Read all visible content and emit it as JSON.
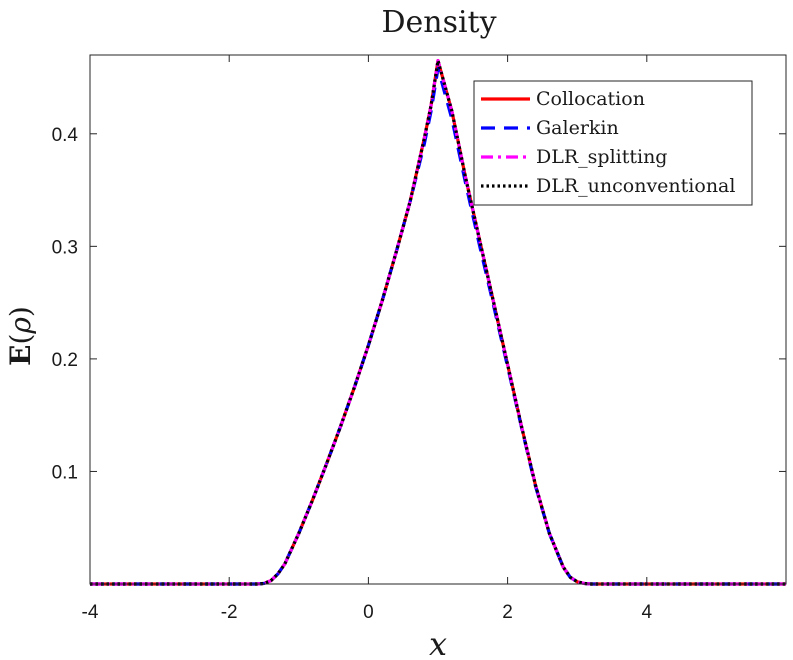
{
  "chart_data": {
    "type": "line",
    "title": "Density",
    "xlabel": "x",
    "ylabel": {
      "prefix": "E",
      "open": "(",
      "symbol": "ρ",
      "close": ")"
    },
    "xlim": [
      -4,
      6
    ],
    "ylim": [
      0,
      0.47
    ],
    "xticks": [
      -4,
      -2,
      0,
      2,
      4
    ],
    "xtick_labels": [
      "-4",
      "-2",
      "0",
      "2",
      "4"
    ],
    "yticks": [
      0.1,
      0.2,
      0.3,
      0.4
    ],
    "ytick_labels": [
      "0.1",
      "0.2",
      "0.3",
      "0.4"
    ],
    "grid": false,
    "legend_position": "top-right",
    "series": [
      {
        "name": "Collocation",
        "color": "#ff0000",
        "style": "solid",
        "x": [
          -4,
          -1.6,
          -1.5,
          -1.4,
          -1.3,
          -1.2,
          -1.0,
          -0.8,
          -0.6,
          -0.4,
          -0.2,
          0.0,
          0.2,
          0.4,
          0.6,
          0.8,
          0.9,
          1.0,
          1.2,
          1.4,
          1.6,
          1.8,
          2.0,
          2.2,
          2.4,
          2.6,
          2.8,
          2.9,
          3.0,
          3.1,
          3.2,
          6
        ],
        "y": [
          0,
          0,
          0.0005,
          0.003,
          0.009,
          0.018,
          0.045,
          0.075,
          0.107,
          0.14,
          0.175,
          0.212,
          0.252,
          0.295,
          0.34,
          0.395,
          0.425,
          0.465,
          0.42,
          0.36,
          0.305,
          0.25,
          0.195,
          0.14,
          0.088,
          0.045,
          0.015,
          0.006,
          0.002,
          0.0005,
          0,
          0
        ]
      },
      {
        "name": "Galerkin",
        "color": "#0000ff",
        "style": "dashed",
        "x": [
          -4,
          -1.6,
          -1.5,
          -1.4,
          -1.3,
          -1.2,
          -1.0,
          -0.8,
          -0.6,
          -0.4,
          -0.2,
          0.0,
          0.2,
          0.4,
          0.6,
          0.8,
          0.9,
          1.0,
          1.2,
          1.4,
          1.6,
          1.8,
          2.0,
          2.2,
          2.4,
          2.6,
          2.8,
          2.9,
          3.0,
          3.1,
          3.2,
          6
        ],
        "y": [
          0,
          0,
          0.0005,
          0.003,
          0.009,
          0.018,
          0.045,
          0.075,
          0.107,
          0.14,
          0.175,
          0.212,
          0.252,
          0.295,
          0.34,
          0.39,
          0.42,
          0.458,
          0.413,
          0.355,
          0.3,
          0.247,
          0.193,
          0.139,
          0.087,
          0.045,
          0.015,
          0.006,
          0.002,
          0.0005,
          0,
          0
        ]
      },
      {
        "name": "DLR_splitting",
        "color": "#ff00ff",
        "style": "dashdot",
        "x": [
          -4,
          -1.6,
          -1.5,
          -1.4,
          -1.3,
          -1.2,
          -1.0,
          -0.8,
          -0.6,
          -0.4,
          -0.2,
          0.0,
          0.2,
          0.4,
          0.6,
          0.8,
          0.9,
          1.0,
          1.2,
          1.4,
          1.6,
          1.8,
          2.0,
          2.2,
          2.4,
          2.6,
          2.8,
          2.9,
          3.0,
          3.1,
          3.2,
          6
        ],
        "y": [
          0,
          0,
          0.0005,
          0.003,
          0.009,
          0.018,
          0.045,
          0.075,
          0.107,
          0.14,
          0.175,
          0.212,
          0.252,
          0.295,
          0.34,
          0.395,
          0.425,
          0.465,
          0.42,
          0.36,
          0.305,
          0.25,
          0.195,
          0.14,
          0.088,
          0.045,
          0.015,
          0.006,
          0.002,
          0.0005,
          0,
          0
        ]
      },
      {
        "name": "DLR_unconventional",
        "color": "#000000",
        "style": "dotted",
        "x": [
          -4,
          -1.6,
          -1.5,
          -1.4,
          -1.3,
          -1.2,
          -1.0,
          -0.8,
          -0.6,
          -0.4,
          -0.2,
          0.0,
          0.2,
          0.4,
          0.6,
          0.8,
          0.9,
          1.0,
          1.2,
          1.4,
          1.6,
          1.8,
          2.0,
          2.2,
          2.4,
          2.6,
          2.8,
          2.9,
          3.0,
          3.1,
          3.2,
          6
        ],
        "y": [
          0,
          0,
          0.0005,
          0.003,
          0.009,
          0.018,
          0.045,
          0.075,
          0.107,
          0.14,
          0.175,
          0.212,
          0.252,
          0.295,
          0.34,
          0.395,
          0.425,
          0.465,
          0.42,
          0.36,
          0.305,
          0.25,
          0.195,
          0.14,
          0.088,
          0.045,
          0.015,
          0.006,
          0.002,
          0.0005,
          0,
          0
        ]
      }
    ]
  }
}
